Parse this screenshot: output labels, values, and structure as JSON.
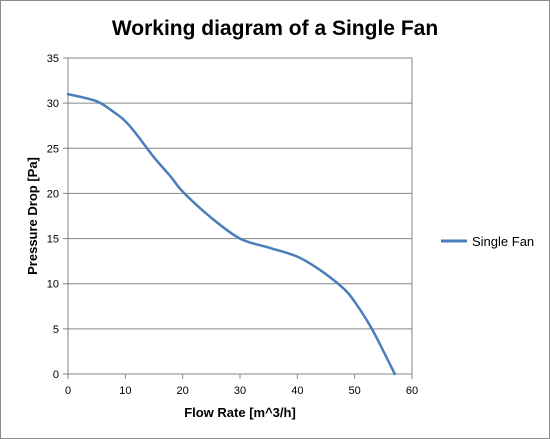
{
  "chart_data": {
    "type": "line",
    "title": "Working diagram of a Single Fan",
    "xlabel": "Flow Rate  [m^3/h]",
    "ylabel": "Pressure Drop [Pa]",
    "xlim": [
      0,
      60
    ],
    "ylim": [
      0,
      35
    ],
    "xticks": [
      0,
      10,
      20,
      30,
      40,
      50,
      60
    ],
    "yticks": [
      0,
      5,
      10,
      15,
      20,
      25,
      30,
      35
    ],
    "grid": "horizontal",
    "legend": "right",
    "series": [
      {
        "name": "Single Fan",
        "color": "#4a7ebb",
        "x": [
          0,
          5,
          8,
          10,
          12,
          15,
          18,
          20,
          25,
          30,
          35,
          40,
          44,
          48,
          50,
          53,
          57
        ],
        "y": [
          31,
          30.2,
          29,
          28,
          26.5,
          24,
          21.8,
          20.2,
          17.3,
          15,
          14,
          13,
          11.5,
          9.5,
          8,
          5,
          0
        ]
      }
    ]
  }
}
